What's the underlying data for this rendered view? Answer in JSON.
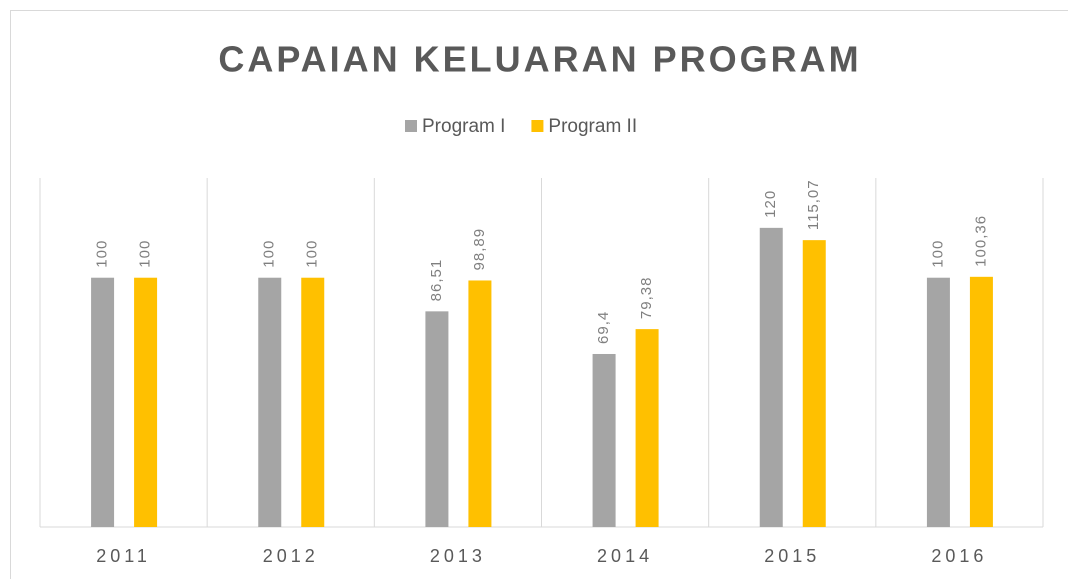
{
  "chart_data": {
    "type": "bar",
    "title": "CAPAIAN KELUARAN PROGRAM",
    "categories": [
      "2011",
      "2012",
      "2013",
      "2014",
      "2015",
      "2016"
    ],
    "series": [
      {
        "name": "Program I",
        "color": "#a5a5a5",
        "values": [
          100,
          100,
          86.51,
          69.4,
          120,
          100
        ],
        "value_labels": [
          "100",
          "100",
          "86,51",
          "69,4",
          "120",
          "100"
        ]
      },
      {
        "name": "Program II",
        "color": "#ffc000",
        "values": [
          100,
          100,
          98.89,
          79.38,
          115.07,
          100.36
        ],
        "value_labels": [
          "100",
          "100",
          "98,89",
          "79,38",
          "115,07",
          "100,36"
        ]
      }
    ],
    "ylim": [
      0,
      140
    ],
    "legend": "top"
  }
}
